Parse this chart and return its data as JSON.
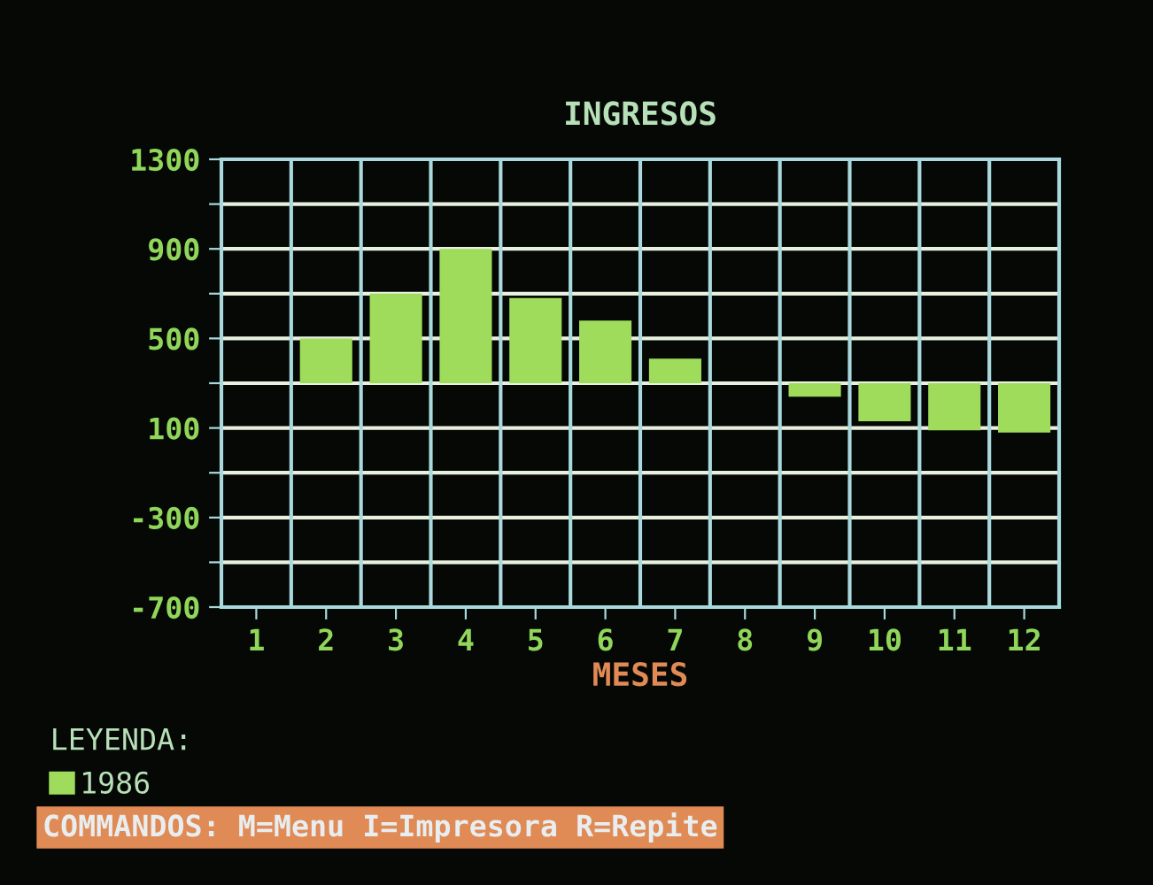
{
  "chart_data": {
    "type": "bar",
    "title": "INGRESOS",
    "xlabel": "MESES",
    "categories": [
      "1",
      "2",
      "3",
      "4",
      "5",
      "6",
      "7",
      "8",
      "9",
      "10",
      "11",
      "12"
    ],
    "series": [
      {
        "name": "1986",
        "color": "#9fdc5c",
        "values": [
          null,
          200,
          400,
          600,
          380,
          280,
          110,
          null,
          -60,
          -170,
          -210,
          -220
        ],
        "base": [
          null,
          300,
          300,
          300,
          300,
          300,
          300,
          null,
          300,
          300,
          300,
          300
        ]
      }
    ],
    "ylim": [
      -700,
      1300
    ],
    "yticks": [
      -700,
      {
        "value": -500,
        "label": null
      },
      -300,
      {
        "value": -100,
        "label": null
      },
      100,
      {
        "value": 300,
        "label": null
      },
      500,
      {
        "value": 700,
        "label": null
      },
      900,
      {
        "value": 1100,
        "label": null
      },
      1300
    ],
    "grid": true,
    "legend": "bottom left",
    "legend_title": "LEYENDA:",
    "annotations": [
      "COMMANDOS: M=Menu I=Impresora R=Repite"
    ]
  }
}
